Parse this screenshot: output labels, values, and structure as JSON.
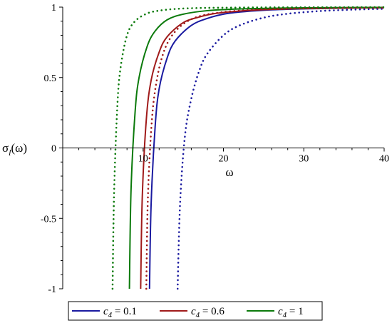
{
  "chart_data": {
    "type": "line",
    "xlabel": "ω",
    "ylabel": "σ_l(ω)",
    "ylabel_main": "σ",
    "ylabel_sub": "l",
    "ylabel_rest": "(ω)",
    "xlim": [
      0,
      40
    ],
    "ylim": [
      -1,
      1
    ],
    "x_ticks": [
      0,
      10,
      20,
      30,
      40
    ],
    "x_tick_labels": [
      "",
      "10",
      "20",
      "30",
      "40"
    ],
    "y_ticks": [
      -1,
      -0.5,
      0,
      0.5,
      1
    ],
    "y_tick_labels": [
      "-1",
      "-0.5",
      "0",
      "0.5",
      "1"
    ],
    "grid": false,
    "legend_position": "bottom",
    "series": [
      {
        "name": "c4 = 0.1",
        "color": "#1a1aa0",
        "style": "solid",
        "x": [
          10.8,
          11.0,
          11.5,
          12,
          13,
          14,
          16,
          18,
          20,
          22,
          25,
          28,
          32,
          36,
          40
        ],
        "y": [
          -1,
          -0.4,
          0.15,
          0.42,
          0.64,
          0.76,
          0.87,
          0.92,
          0.95,
          0.965,
          0.978,
          0.985,
          0.99,
          0.994,
          0.996
        ]
      },
      {
        "name": "c4 = 0.6",
        "color": "#a01a1a",
        "style": "solid",
        "x": [
          9.7,
          9.9,
          10.4,
          11,
          12,
          13,
          15,
          17,
          19,
          22,
          25,
          30,
          35,
          40
        ],
        "y": [
          -1,
          -0.35,
          0.2,
          0.48,
          0.68,
          0.79,
          0.89,
          0.93,
          0.955,
          0.972,
          0.982,
          0.99,
          0.994,
          0.996
        ]
      },
      {
        "name": "c4 = 1",
        "color": "#0b7a0b",
        "style": "solid",
        "x": [
          8.3,
          8.5,
          9,
          9.5,
          10.5,
          11.5,
          13,
          15,
          18,
          22,
          26,
          30,
          35,
          40
        ],
        "y": [
          -1,
          -0.3,
          0.25,
          0.5,
          0.72,
          0.83,
          0.91,
          0.95,
          0.975,
          0.987,
          0.992,
          0.995,
          0.997,
          0.998
        ]
      },
      {
        "color": "#1a1aa0",
        "style": "dotted",
        "x": [
          14.3,
          14.6,
          15.2,
          16,
          17,
          18,
          20,
          22,
          25,
          28,
          32,
          36,
          40
        ],
        "y": [
          -1,
          -0.4,
          0.08,
          0.35,
          0.55,
          0.67,
          0.8,
          0.87,
          0.925,
          0.953,
          0.972,
          0.982,
          0.988
        ]
      },
      {
        "color": "#a01a1a",
        "style": "dotted",
        "x": [
          10.4,
          10.6,
          11.1,
          11.7,
          12.5,
          13.5,
          15,
          17,
          20,
          24,
          28,
          34,
          40
        ],
        "y": [
          -1,
          -0.35,
          0.2,
          0.48,
          0.67,
          0.79,
          0.88,
          0.935,
          0.965,
          0.982,
          0.989,
          0.994,
          0.996
        ]
      },
      {
        "color": "#0b7a0b",
        "style": "dotted",
        "x": [
          6.2,
          6.4,
          6.8,
          7.2,
          8,
          9,
          10.5,
          12,
          14,
          17,
          20,
          25,
          32,
          40
        ],
        "y": [
          -1,
          -0.3,
          0.3,
          0.57,
          0.8,
          0.9,
          0.955,
          0.975,
          0.987,
          0.994,
          0.996,
          0.998,
          0.999,
          1.0
        ]
      }
    ]
  },
  "legend": {
    "items": [
      {
        "c": "c",
        "sub": "4",
        "rest": " = 0.1",
        "color": "#1a1aa0"
      },
      {
        "c": "c",
        "sub": "4",
        "rest": " = 0.6",
        "color": "#a01a1a"
      },
      {
        "c": "c",
        "sub": "4",
        "rest": " = 1",
        "color": "#0b7a0b"
      }
    ]
  }
}
